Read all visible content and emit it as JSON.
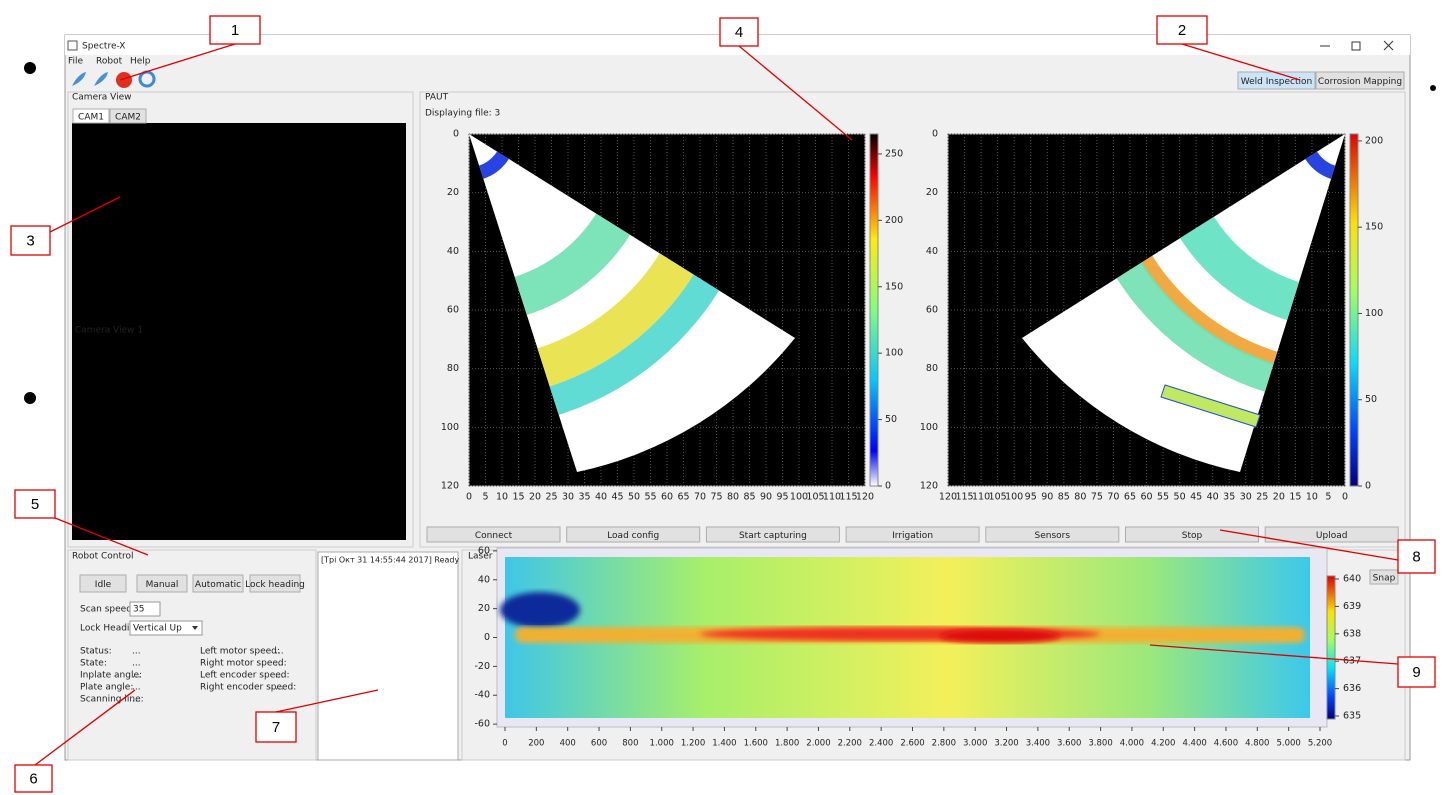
{
  "callouts": [
    "1",
    "2",
    "3",
    "4",
    "5",
    "6",
    "7",
    "8",
    "9"
  ],
  "window": {
    "title": "Spectre-X",
    "menu": [
      "File",
      "Robot",
      "Help"
    ],
    "modes": [
      "Weld Inspection",
      "Corrosion Mapping"
    ]
  },
  "camera": {
    "title": "Camera View",
    "tabs": [
      "CAM1",
      "CAM2"
    ],
    "label": "Camera View 1"
  },
  "paut": {
    "title": "PAUT",
    "status": "Displaying file: 3",
    "plots": [
      {
        "xlim": [
          0,
          120
        ],
        "ylim": [
          0,
          120
        ],
        "xticks": [
          0,
          5,
          10,
          15,
          20,
          25,
          30,
          35,
          40,
          45,
          50,
          55,
          60,
          65,
          70,
          75,
          80,
          85,
          90,
          95,
          100,
          105,
          110,
          115,
          120
        ],
        "yticks": [
          0,
          20,
          40,
          60,
          80,
          100,
          120
        ],
        "clim": [
          0,
          265
        ],
        "cticks": [
          0,
          50,
          100,
          150,
          200,
          250
        ]
      },
      {
        "xlim": [
          120,
          0
        ],
        "ylim": [
          0,
          120
        ],
        "xticks": [
          120,
          115,
          110,
          105,
          100,
          95,
          90,
          85,
          80,
          75,
          70,
          65,
          60,
          55,
          50,
          45,
          40,
          35,
          30,
          25,
          20,
          15,
          10,
          5,
          0
        ],
        "yticks": [
          0,
          20,
          40,
          60,
          80,
          100,
          120
        ],
        "clim": [
          0,
          204
        ],
        "cticks": [
          0,
          50,
          100,
          150,
          200
        ]
      }
    ],
    "buttons": [
      "Connect",
      "Load config",
      "Start capturing",
      "Irrigation",
      "Sensors",
      "Stop",
      "Upload"
    ]
  },
  "robot": {
    "title": "Robot Control",
    "modes": [
      "Idle",
      "Manual",
      "Automatic",
      "Lock heading"
    ],
    "scan_speed_label": "Scan speed:",
    "scan_speed": "35",
    "lock_heading_label": "Lock Heading:",
    "lock_heading": "Vertical Up",
    "status_left": [
      [
        "Status:",
        "..."
      ],
      [
        "State:",
        "..."
      ],
      [
        "Inplate angle:",
        "..."
      ],
      [
        "Plate angle:",
        "..."
      ],
      [
        "Scanning line:",
        "..."
      ]
    ],
    "status_right": [
      [
        "Left motor speed:",
        "..."
      ],
      [
        "Right motor speed:",
        "..."
      ],
      [
        "Left encoder speed:",
        "..."
      ],
      [
        "Right encoder speed:",
        "..."
      ]
    ]
  },
  "log": "[Трі Окт 31 14:55:44 2017] Ready",
  "laser": {
    "title": "Laser",
    "snap": "Snap",
    "ylim": [
      -62,
      62
    ],
    "yticks": [
      60,
      40,
      20,
      0,
      -20,
      -40,
      -60
    ],
    "xlim": [
      0,
      5200
    ],
    "xticks": [
      0,
      200,
      400,
      600,
      800,
      {
        "value": 1000,
        "label": "1.000"
      },
      {
        "value": 1200,
        "label": "1.200"
      },
      {
        "value": 1400,
        "label": "1.400"
      },
      {
        "value": 1600,
        "label": "1.600"
      },
      {
        "value": 1800,
        "label": "1.800"
      },
      {
        "value": 2000,
        "label": "2.000"
      },
      {
        "value": 2200,
        "label": "2.200"
      },
      {
        "value": 2400,
        "label": "2.400"
      },
      {
        "value": 2600,
        "label": "2.600"
      },
      {
        "value": 2800,
        "label": "2.800"
      },
      {
        "value": 3000,
        "label": "3.000"
      },
      {
        "value": 3200,
        "label": "3.200"
      },
      {
        "value": 3400,
        "label": "3.400"
      },
      {
        "value": 3600,
        "label": "3.600"
      },
      {
        "value": 3800,
        "label": "3.800"
      },
      {
        "value": 4000,
        "label": "4.000"
      },
      {
        "value": 4200,
        "label": "4.200"
      },
      {
        "value": 4400,
        "label": "4.400"
      },
      {
        "value": 4600,
        "label": "4.600"
      },
      {
        "value": 4800,
        "label": "4.800"
      },
      {
        "value": 5000,
        "label": "5.000"
      },
      {
        "value": 5200,
        "label": "5.200"
      }
    ],
    "clim": [
      635,
      640
    ],
    "cticks": [
      640,
      639,
      638,
      637,
      636,
      635
    ]
  }
}
